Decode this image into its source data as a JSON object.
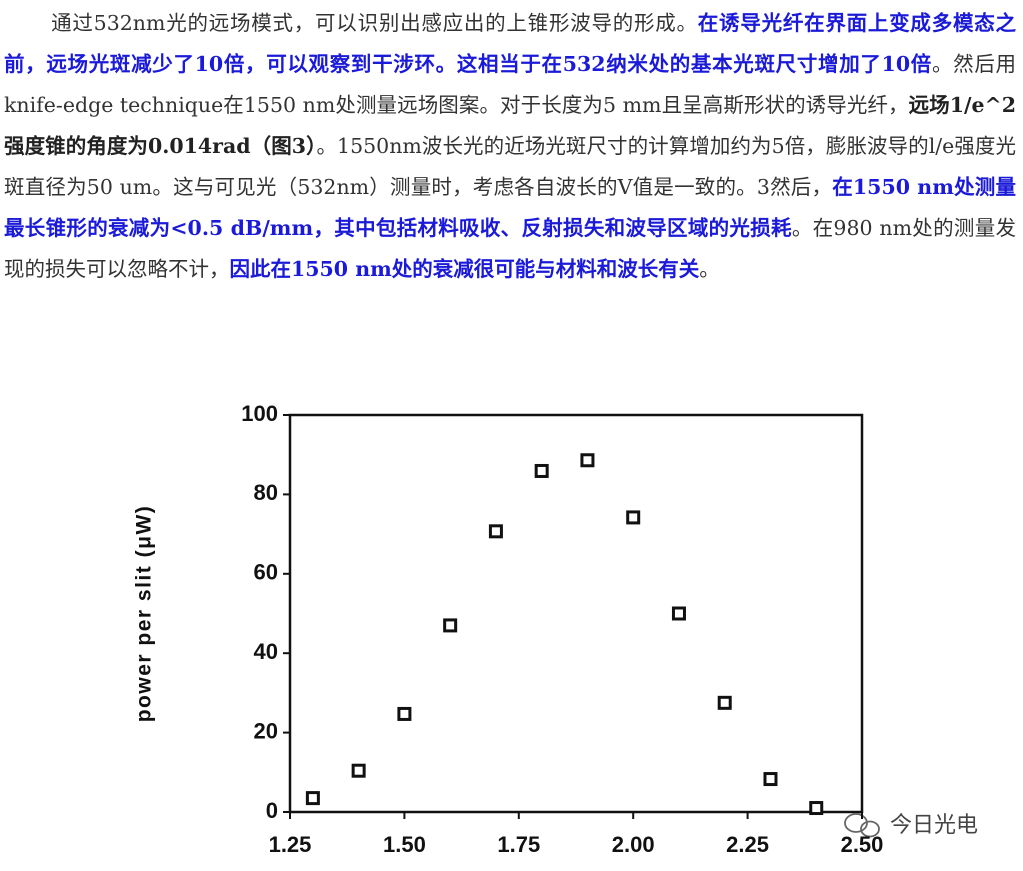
{
  "paragraph": {
    "segments": [
      {
        "text": "通过532nm光的远场模式，可以识别出感应出的上锥形波导的形成。",
        "style": "normal"
      },
      {
        "text": "在诱导光纤在界面上变成多模态之前，远场光斑减少了10倍，可以观察到干涉环。这相当于在532纳米处的基本光斑尺寸增加了10倍",
        "style": "emphasis"
      },
      {
        "text": "。然后用knife-edge technique在1550 nm处测量远场图案。对于长度为5 mm且呈高斯形状的诱导光纤，",
        "style": "normal"
      },
      {
        "text": "远场1/e^2强度锥的角度为0.014rad（图3）",
        "style": "bold"
      },
      {
        "text": "。1550nm波长光的近场光斑尺寸的计算增加约为5倍，膨胀波导的l/e强度光斑直径为50 um。这与可见光（532nm）测量时，考虑各自波长的V值是一致的。3然后，",
        "style": "normal"
      },
      {
        "text": "在1550 nm处测量最长锥形的衰减为<0.5 dB/mm，其中包括材料吸收、反射损失和波导区域的光损耗",
        "style": "emphasis"
      },
      {
        "text": "。在980 nm处的测量发现的损失可以忽略不计，",
        "style": "normal"
      },
      {
        "text": "因此在1550 nm处的衰减很可能与材料和波长有关",
        "style": "emphasis"
      },
      {
        "text": "。",
        "style": "normal"
      }
    ]
  },
  "chart_data": {
    "type": "scatter",
    "y_label": "power per slit (μW)",
    "x": [
      1.3,
      1.4,
      1.5,
      1.6,
      1.7,
      1.8,
      1.9,
      2.0,
      2.1,
      2.2,
      2.3,
      2.4
    ],
    "values": [
      3.5,
      10.4,
      24.7,
      47,
      70.7,
      85.9,
      88.6,
      74.2,
      50,
      27.5,
      8.3,
      1
    ],
    "color": "#111111",
    "xlim": [
      1.25,
      2.5
    ],
    "xticks": [
      1.25,
      {
        "value": 1.5,
        "label": "1.50"
      },
      1.75,
      {
        "value": 2.0,
        "label": "2.00"
      },
      2.25,
      {
        "value": 2.5,
        "label": "2.50"
      }
    ],
    "ylim": [
      0,
      100
    ],
    "yticks": [
      0,
      20,
      40,
      60,
      80,
      100
    ],
    "grid": false
  },
  "watermark": "今日光电"
}
